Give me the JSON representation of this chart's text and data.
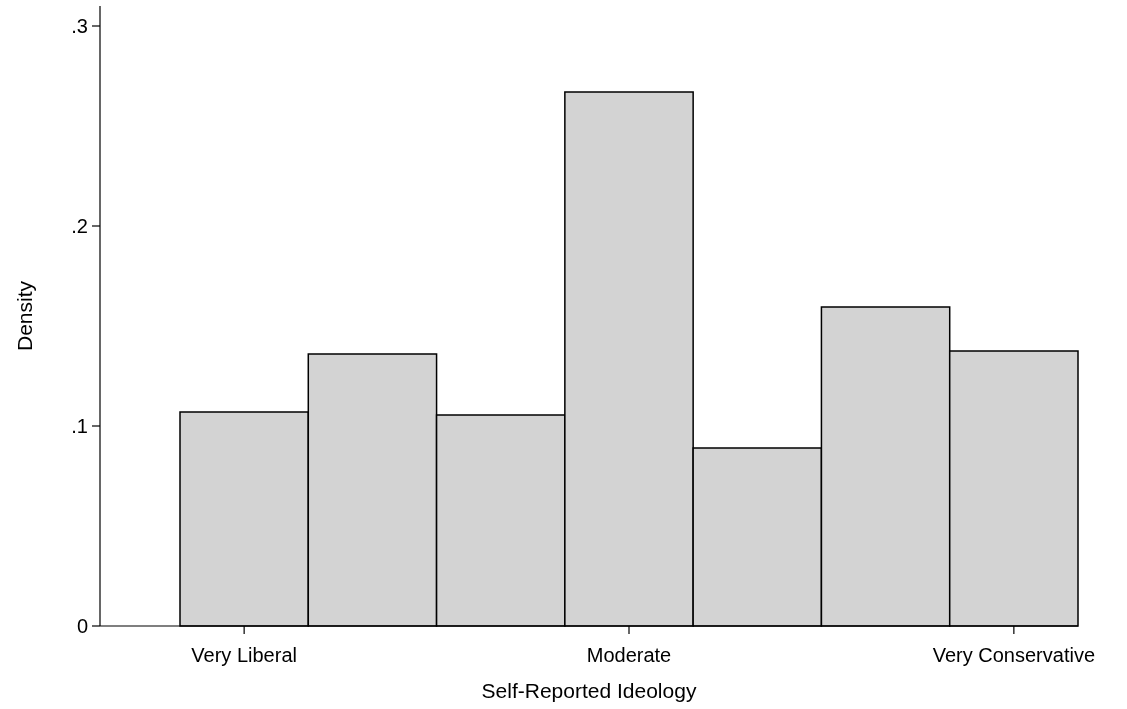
{
  "chart_data": {
    "type": "bar",
    "xlabel": "Self-Reported Ideology",
    "ylabel": "Density",
    "categories": [
      "Very Liberal",
      null,
      null,
      "Moderate",
      null,
      null,
      "Very Conservative"
    ],
    "values": [
      0.107,
      0.136,
      0.1055,
      0.267,
      0.089,
      0.1595,
      0.1375
    ],
    "color": "#d3d3d3",
    "ylim": [
      0,
      0.31
    ],
    "yticks": [
      0,
      {
        "value": 0.1,
        "label": ".1"
      },
      {
        "value": 0.2,
        "label": ".2"
      },
      {
        "value": 0.3,
        "label": ".3"
      }
    ]
  }
}
